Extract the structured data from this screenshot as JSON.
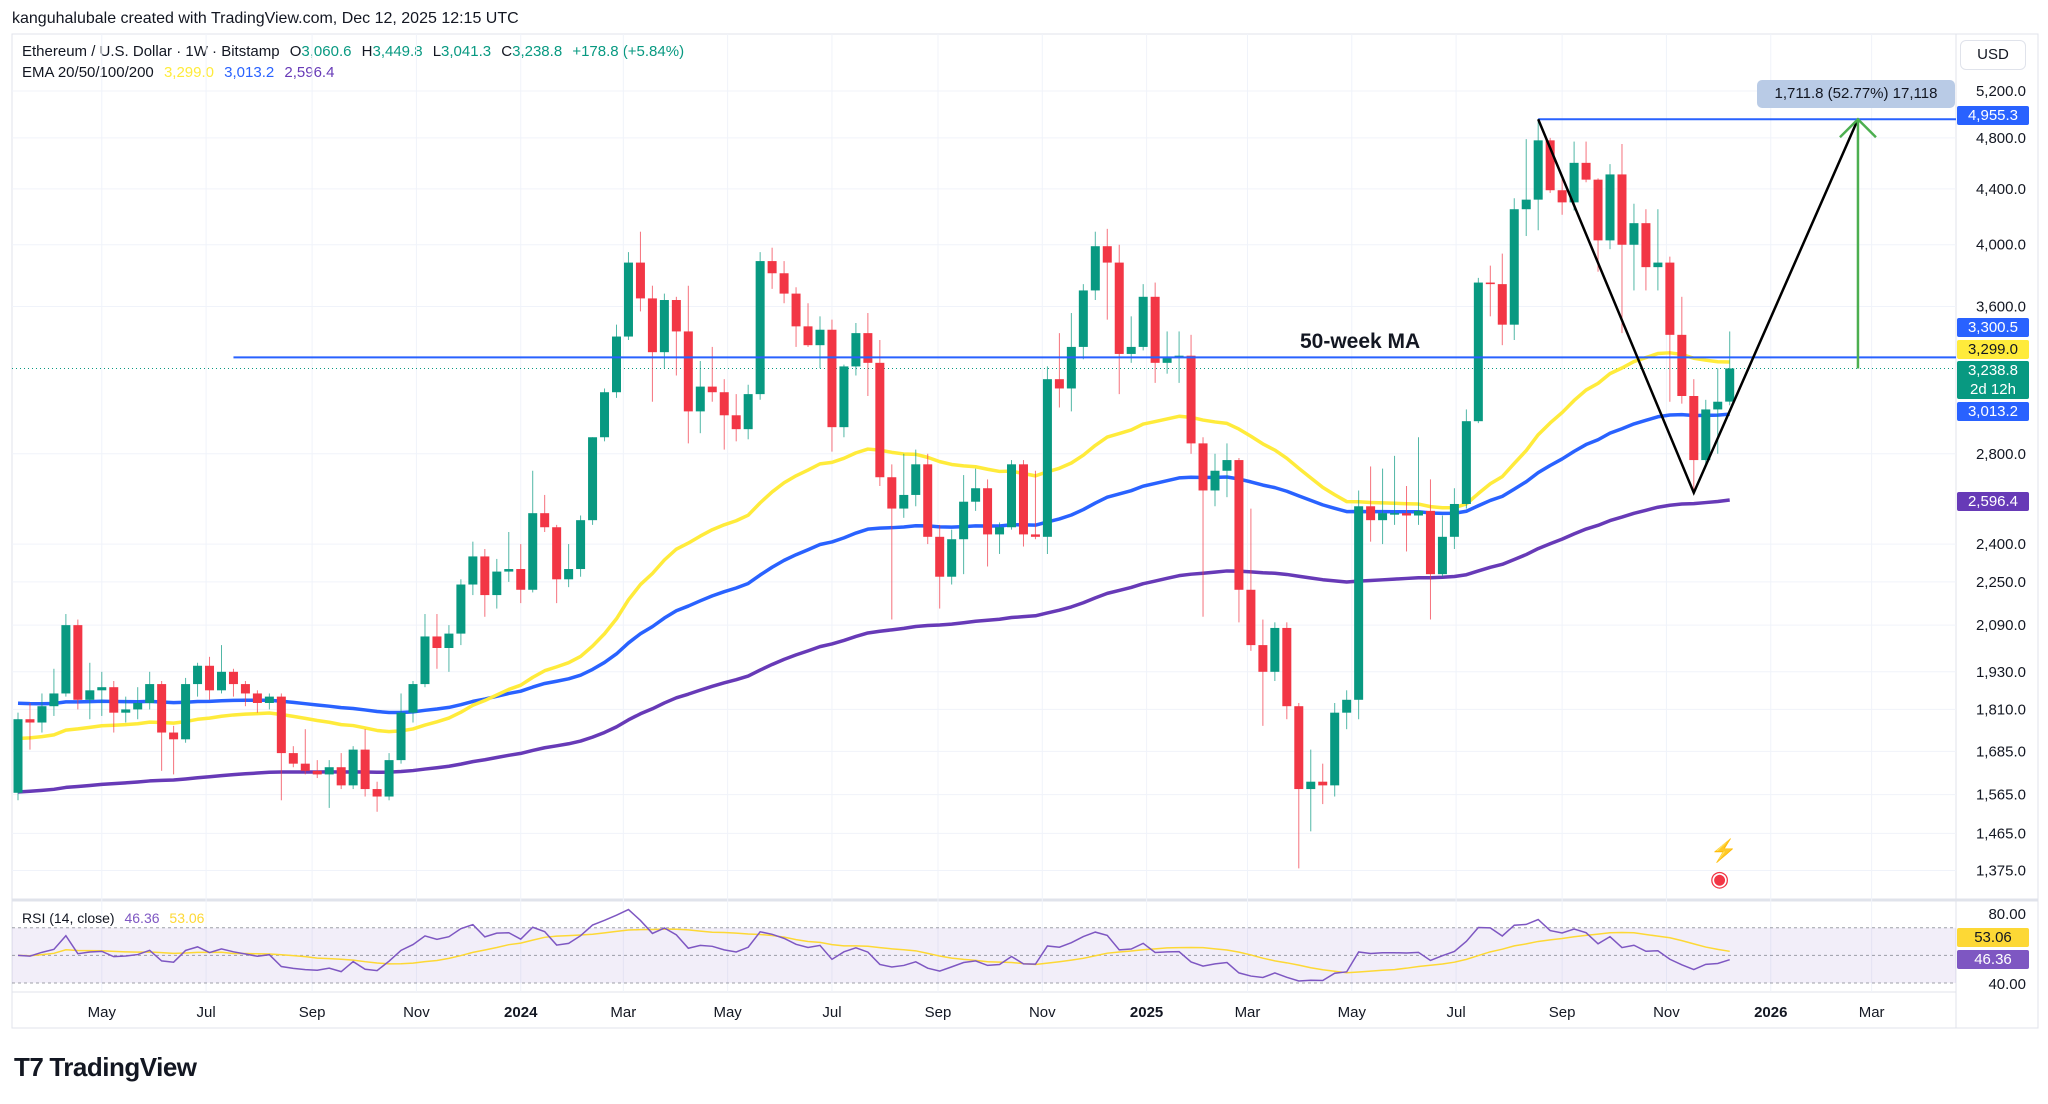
{
  "attribution": "kanguhalubale created with TradingView.com, Dec 12, 2025 12:15 UTC",
  "legend": {
    "symbol": "Ethereum / U.S. Dollar · 1W · Bitstamp",
    "open_label": "O",
    "open": "3,060.6",
    "high_label": "H",
    "high": "3,449.8",
    "low_label": "L",
    "low": "3,041.3",
    "close_label": "C",
    "close": "3,238.8",
    "change": "+178.8 (+5.84%)",
    "ema_label": "EMA 20/50/100/200",
    "ema_values": [
      "3,299.0",
      "3,013.2",
      "2,596.4"
    ]
  },
  "currency_button": "USD",
  "colors": {
    "up": "#089981",
    "down": "#f23645",
    "ema_yellow": "#ffeb3b",
    "ema_blue": "#2962ff",
    "ema_purple": "#673ab7",
    "rsi": "#7e57c2",
    "rsi_ma": "#fdd835",
    "level_line": "#2962ff",
    "arrow": "#4caf50"
  },
  "annotations": {
    "ma_label": "50-week MA",
    "measure_label": "1,711.8 (52.77%) 17,118",
    "horizontal_levels": [
      {
        "price": 3300.5,
        "from": "2023-07-17"
      },
      {
        "price": 4955.3,
        "from": "2025-08-18"
      }
    ],
    "v_pattern": [
      {
        "date": "2025-08-18",
        "price": 4955.3
      },
      {
        "date": "2025-11-17",
        "price": 2620
      },
      {
        "date": "2026-02-21",
        "price": 4955.3
      }
    ],
    "target_arrow": {
      "date": "2026-02-21",
      "from_price": 3238.8,
      "to_price": 4955.3
    }
  },
  "price_tags": [
    {
      "text": "4,955.3",
      "color": "#2962ff",
      "text_color": "#ffffff"
    },
    {
      "text": "3,300.5",
      "color": "#2962ff",
      "text_color": "#ffffff"
    },
    {
      "text": "3,299.0",
      "color": "#ffeb3b",
      "text_color": "#131722"
    },
    {
      "text": "3,238.8",
      "sub": "2d 12h",
      "color": "#089981",
      "text_color": "#ffffff"
    },
    {
      "text": "3,013.2",
      "color": "#2962ff",
      "text_color": "#ffffff"
    },
    {
      "text": "2,596.4",
      "color": "#673ab7",
      "text_color": "#ffffff"
    }
  ],
  "rsi": {
    "label": "RSI (14, close)",
    "value": "46.36",
    "ma_value": "53.06",
    "axis_label": "80.00",
    "axis_label_low": "40.00",
    "upper_band": 70,
    "lower_band": 30,
    "mid": 50
  },
  "logo_text": "TradingView",
  "chart_data": {
    "type": "candlestick",
    "interval": "1W",
    "scale": "log",
    "ylim": [
      1310,
      5680
    ],
    "grid": true,
    "first_week": "2023-03-13",
    "y_ticks": [
      5200,
      4800,
      4400,
      4000,
      3600,
      2800,
      2400,
      2250,
      2090,
      1930,
      1810,
      1685,
      1565,
      1465,
      1375
    ],
    "x_ticks": [
      {
        "label": "May",
        "date": "2023-05-01"
      },
      {
        "label": "Jul",
        "date": "2023-07-01"
      },
      {
        "label": "Sep",
        "date": "2023-09-01"
      },
      {
        "label": "Nov",
        "date": "2023-11-01"
      },
      {
        "label": "2024",
        "date": "2024-01-01",
        "bold": true
      },
      {
        "label": "Mar",
        "date": "2024-03-01"
      },
      {
        "label": "May",
        "date": "2024-05-01"
      },
      {
        "label": "Jul",
        "date": "2024-07-01"
      },
      {
        "label": "Sep",
        "date": "2024-09-01"
      },
      {
        "label": "Nov",
        "date": "2024-11-01"
      },
      {
        "label": "2025",
        "date": "2025-01-01",
        "bold": true
      },
      {
        "label": "Mar",
        "date": "2025-03-01"
      },
      {
        "label": "May",
        "date": "2025-05-01"
      },
      {
        "label": "Jul",
        "date": "2025-07-01"
      },
      {
        "label": "Sep",
        "date": "2025-09-01"
      },
      {
        "label": "Nov",
        "date": "2025-11-01"
      },
      {
        "label": "2026",
        "date": "2026-01-01",
        "bold": true
      },
      {
        "label": "Mar",
        "date": "2026-03-01"
      }
    ],
    "series_names": [
      "EMA 20/50/100/200"
    ],
    "candles": [
      [
        1570,
        1800,
        1550,
        1780
      ],
      [
        1780,
        1830,
        1690,
        1770
      ],
      [
        1770,
        1860,
        1740,
        1820
      ],
      [
        1820,
        1940,
        1790,
        1860
      ],
      [
        1860,
        2130,
        1850,
        2090
      ],
      [
        2090,
        2110,
        1810,
        1840
      ],
      [
        1840,
        1960,
        1780,
        1870
      ],
      [
        1870,
        1930,
        1790,
        1880
      ],
      [
        1880,
        1900,
        1740,
        1800
      ],
      [
        1800,
        1850,
        1770,
        1810
      ],
      [
        1810,
        1880,
        1780,
        1830
      ],
      [
        1830,
        1930,
        1810,
        1890
      ],
      [
        1890,
        1900,
        1630,
        1740
      ],
      [
        1740,
        1760,
        1620,
        1720
      ],
      [
        1720,
        1910,
        1710,
        1890
      ],
      [
        1890,
        1960,
        1850,
        1950
      ],
      [
        1950,
        1980,
        1840,
        1870
      ],
      [
        1870,
        2020,
        1860,
        1930
      ],
      [
        1930,
        1940,
        1850,
        1890
      ],
      [
        1890,
        1900,
        1820,
        1860
      ],
      [
        1860,
        1870,
        1800,
        1830
      ],
      [
        1830,
        1860,
        1810,
        1850
      ],
      [
        1850,
        1860,
        1550,
        1680
      ],
      [
        1680,
        1700,
        1640,
        1650
      ],
      [
        1650,
        1750,
        1620,
        1630
      ],
      [
        1630,
        1660,
        1610,
        1620
      ],
      [
        1620,
        1660,
        1530,
        1640
      ],
      [
        1640,
        1680,
        1580,
        1590
      ],
      [
        1590,
        1700,
        1580,
        1690
      ],
      [
        1690,
        1750,
        1560,
        1580
      ],
      [
        1580,
        1600,
        1520,
        1560
      ],
      [
        1560,
        1680,
        1550,
        1660
      ],
      [
        1660,
        1860,
        1650,
        1800
      ],
      [
        1800,
        1900,
        1770,
        1890
      ],
      [
        1890,
        2130,
        1880,
        2050
      ],
      [
        2050,
        2130,
        1940,
        2010
      ],
      [
        2010,
        2090,
        1930,
        2060
      ],
      [
        2060,
        2260,
        2020,
        2240
      ],
      [
        2240,
        2410,
        2200,
        2350
      ],
      [
        2350,
        2380,
        2120,
        2200
      ],
      [
        2200,
        2340,
        2150,
        2290
      ],
      [
        2290,
        2450,
        2250,
        2300
      ],
      [
        2300,
        2400,
        2170,
        2220
      ],
      [
        2220,
        2720,
        2210,
        2530
      ],
      [
        2530,
        2610,
        2450,
        2470
      ],
      [
        2470,
        2480,
        2170,
        2260
      ],
      [
        2260,
        2400,
        2230,
        2300
      ],
      [
        2300,
        2520,
        2270,
        2500
      ],
      [
        2500,
        2880,
        2480,
        2880
      ],
      [
        2880,
        3130,
        2860,
        3110
      ],
      [
        3110,
        3490,
        3080,
        3420
      ],
      [
        3420,
        3950,
        3400,
        3880
      ],
      [
        3880,
        4090,
        3570,
        3650
      ],
      [
        3650,
        3730,
        3060,
        3330
      ],
      [
        3330,
        3680,
        3240,
        3640
      ],
      [
        3640,
        3660,
        3200,
        3450
      ],
      [
        3450,
        3730,
        2850,
        3010
      ],
      [
        3010,
        3280,
        2900,
        3140
      ],
      [
        3140,
        3360,
        3060,
        3110
      ],
      [
        3110,
        3180,
        2820,
        2990
      ],
      [
        2990,
        3100,
        2860,
        2920
      ],
      [
        2920,
        3150,
        2870,
        3100
      ],
      [
        3100,
        3950,
        3070,
        3890
      ],
      [
        3890,
        3980,
        3710,
        3810
      ],
      [
        3810,
        3890,
        3620,
        3680
      ],
      [
        3680,
        3720,
        3360,
        3480
      ],
      [
        3480,
        3620,
        3360,
        3370
      ],
      [
        3370,
        3540,
        3240,
        3460
      ],
      [
        3460,
        3520,
        2810,
        2930
      ],
      [
        2930,
        3260,
        2880,
        3250
      ],
      [
        3250,
        3500,
        3200,
        3440
      ],
      [
        3440,
        3560,
        3090,
        3270
      ],
      [
        3270,
        3400,
        2650,
        2690
      ],
      [
        2690,
        2750,
        2110,
        2550
      ],
      [
        2550,
        2800,
        2510,
        2610
      ],
      [
        2610,
        2820,
        2560,
        2750
      ],
      [
        2750,
        2800,
        2400,
        2430
      ],
      [
        2430,
        2480,
        2150,
        2270
      ],
      [
        2270,
        2460,
        2240,
        2420
      ],
      [
        2420,
        2700,
        2280,
        2580
      ],
      [
        2580,
        2730,
        2540,
        2640
      ],
      [
        2640,
        2680,
        2310,
        2440
      ],
      [
        2440,
        2490,
        2360,
        2470
      ],
      [
        2470,
        2770,
        2460,
        2750
      ],
      [
        2750,
        2770,
        2390,
        2440
      ],
      [
        2440,
        2720,
        2420,
        2430
      ],
      [
        2430,
        3250,
        2360,
        3180
      ],
      [
        3180,
        3440,
        3030,
        3130
      ],
      [
        3130,
        3560,
        3010,
        3360
      ],
      [
        3360,
        3740,
        3290,
        3700
      ],
      [
        3700,
        4090,
        3640,
        3990
      ],
      [
        3990,
        4110,
        3520,
        3880
      ],
      [
        3880,
        4000,
        3100,
        3320
      ],
      [
        3320,
        3540,
        3270,
        3360
      ],
      [
        3360,
        3740,
        3340,
        3660
      ],
      [
        3660,
        3750,
        3160,
        3270
      ],
      [
        3270,
        3450,
        3210,
        3300
      ],
      [
        3300,
        3450,
        3160,
        3310
      ],
      [
        3310,
        3430,
        2800,
        2850
      ],
      [
        2850,
        2880,
        2120,
        2630
      ],
      [
        2630,
        2800,
        2560,
        2720
      ],
      [
        2720,
        2850,
        2600,
        2770
      ],
      [
        2770,
        2780,
        2100,
        2220
      ],
      [
        2220,
        2550,
        2000,
        2020
      ],
      [
        2020,
        2110,
        1760,
        1930
      ],
      [
        1930,
        2100,
        1900,
        2080
      ],
      [
        2080,
        2100,
        1780,
        1820
      ],
      [
        1820,
        1830,
        1380,
        1580
      ],
      [
        1580,
        1690,
        1470,
        1600
      ],
      [
        1600,
        1650,
        1540,
        1590
      ],
      [
        1590,
        1830,
        1560,
        1800
      ],
      [
        1800,
        1870,
        1750,
        1840
      ],
      [
        1840,
        2630,
        1780,
        2560
      ],
      [
        2560,
        2740,
        2410,
        2500
      ],
      [
        2500,
        2730,
        2400,
        2530
      ],
      [
        2530,
        2790,
        2480,
        2530
      ],
      [
        2530,
        2650,
        2370,
        2520
      ],
      [
        2520,
        2880,
        2480,
        2540
      ],
      [
        2540,
        2680,
        2110,
        2280
      ],
      [
        2280,
        2520,
        2270,
        2430
      ],
      [
        2430,
        2640,
        2380,
        2570
      ],
      [
        2570,
        3020,
        2550,
        2960
      ],
      [
        2960,
        3780,
        2950,
        3750
      ],
      [
        3750,
        3860,
        3540,
        3740
      ],
      [
        3740,
        3940,
        3370,
        3490
      ],
      [
        3490,
        4330,
        3400,
        4250
      ],
      [
        4250,
        4790,
        4060,
        4320
      ],
      [
        4320,
        4955.3,
        4100,
        4780
      ],
      [
        4780,
        4800,
        4370,
        4390
      ],
      [
        4390,
        4500,
        4210,
        4300
      ],
      [
        4300,
        4770,
        4240,
        4600
      ],
      [
        4600,
        4770,
        4450,
        4470
      ],
      [
        4470,
        4480,
        3820,
        4030
      ],
      [
        4030,
        4590,
        3970,
        4510
      ],
      [
        4510,
        4750,
        3440,
        4000
      ],
      [
        4000,
        4290,
        3700,
        4150
      ],
      [
        4150,
        4250,
        3700,
        3850
      ],
      [
        3850,
        4250,
        3700,
        3880
      ],
      [
        3880,
        3920,
        3060,
        3430
      ],
      [
        3430,
        3660,
        3050,
        3090
      ],
      [
        3090,
        3180,
        2620,
        2770
      ],
      [
        2770,
        3070,
        2740,
        3020
      ],
      [
        3020,
        3240,
        2800,
        3060
      ],
      [
        3060.6,
        3449.8,
        3041.3,
        3238.8
      ]
    ]
  }
}
